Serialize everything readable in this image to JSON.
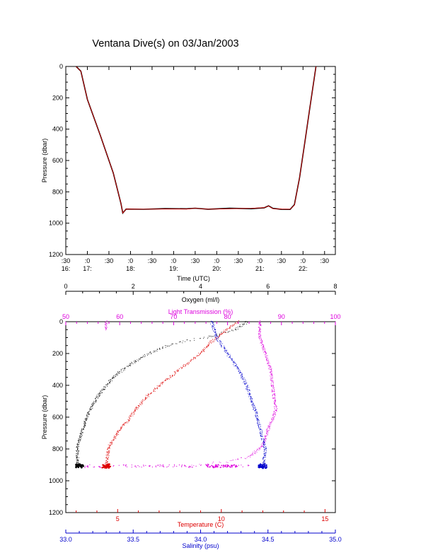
{
  "title": "Ventana Dive(s) on 03/Jan/2003",
  "colors": {
    "axis": "#000000",
    "trace_dark": "#000000",
    "trace_red": "#dd0000",
    "temperature": "#dd0000",
    "salinity": "#0000cc",
    "light_transmission": "#dd00dd",
    "oxygen": "#000000"
  },
  "chart_data": [
    {
      "type": "line",
      "ylabel": "Pressure (dbar)",
      "xlabel": "Time (UTC)",
      "ylim": [
        1200,
        0
      ],
      "y_ticks": [
        0,
        200,
        400,
        600,
        800,
        1000,
        1200
      ],
      "y_tick_labels": [
        "0",
        "200",
        "400",
        "600",
        "800",
        "1000",
        "1200"
      ],
      "xlim": [
        16.5,
        22.75
      ],
      "x_ticks": [
        16.5,
        17,
        17.5,
        18,
        18.5,
        19,
        19.5,
        20,
        20.5,
        21,
        21.5,
        22,
        22.5
      ],
      "x_tick_labels": [
        [
          ":30",
          "16:"
        ],
        [
          ":0",
          "17:"
        ],
        [
          ":30",
          ""
        ],
        [
          ":0",
          "18:"
        ],
        [
          ":30",
          ""
        ],
        [
          ":0",
          "19:"
        ],
        [
          ":30",
          ""
        ],
        [
          ":0",
          "20:"
        ],
        [
          ":30",
          ""
        ],
        [
          ":0",
          "21:"
        ],
        [
          ":30",
          ""
        ],
        [
          ":0",
          "22:"
        ],
        [
          ":30",
          ""
        ]
      ],
      "series": [
        {
          "x": [
            16.74,
            16.85,
            17.0,
            17.3,
            17.6,
            17.78,
            17.82,
            17.9,
            18.3,
            18.8,
            19.3,
            19.5,
            19.8,
            20.3,
            20.8,
            21.1,
            21.2,
            21.3,
            21.5,
            21.7,
            21.8,
            21.92,
            22.05,
            22.15,
            22.3
          ],
          "y": [
            0,
            30,
            210,
            440,
            680,
            875,
            935,
            910,
            911,
            910,
            910,
            905,
            911,
            908,
            905,
            901,
            890,
            907,
            910,
            911,
            885,
            710,
            470,
            280,
            0
          ]
        }
      ]
    },
    {
      "type": "scatter",
      "ylabel": "Pressure (dbar)",
      "ylim": [
        1200,
        0
      ],
      "y_ticks": [
        0,
        200,
        400,
        600,
        800,
        1000,
        1200
      ],
      "y_tick_labels": [
        "0",
        "200",
        "400",
        "600",
        "800",
        "1000",
        "1200"
      ],
      "axes": {
        "oxygen": {
          "label": "Oxygen (ml/l)",
          "range": [
            0,
            8
          ],
          "ticks": [
            0,
            2,
            4,
            6,
            8
          ],
          "tick_labels": [
            "0",
            "2",
            "4",
            "6",
            "8"
          ]
        },
        "light_transmission": {
          "label": "Light Transmission (%)",
          "range": [
            50,
            100
          ],
          "ticks": [
            50,
            60,
            70,
            80,
            90,
            100
          ],
          "tick_labels": [
            "50",
            "60",
            "70",
            "80",
            "90",
            "100"
          ]
        },
        "temperature": {
          "label": "Temperature (C)",
          "range": [
            2.5,
            15.5
          ],
          "ticks": [
            5,
            10,
            15
          ],
          "tick_labels": [
            "5",
            "10",
            "15"
          ]
        },
        "salinity": {
          "label": "Salinity (psu)",
          "range": [
            33.0,
            35.0
          ],
          "ticks": [
            33.0,
            33.5,
            34.0,
            34.5,
            35.0
          ],
          "tick_labels": [
            "33.0",
            "33.5",
            "34.0",
            "34.5",
            "35.0"
          ]
        }
      },
      "series": [
        {
          "axis": "oxygen",
          "x": [
            5.4,
            5.0,
            4.2,
            3.6,
            3.0,
            2.2,
            1.5,
            1.0,
            0.7,
            0.5,
            0.35,
            0.35,
            0.4
          ],
          "y": [
            0,
            50,
            100,
            120,
            150,
            230,
            330,
            450,
            560,
            680,
            780,
            880,
            910
          ]
        },
        {
          "axis": "light_transmission",
          "x": [
            57.5,
            57.5,
            86.0,
            86.0,
            88.0,
            88.5,
            89.0,
            88.5,
            87.5,
            86.5,
            84.0,
            80.0,
            72.0,
            63.0
          ],
          "y": [
            0,
            50,
            0,
            100,
            300,
            450,
            550,
            600,
            680,
            780,
            850,
            880,
            905,
            910
          ]
        },
        {
          "axis": "temperature",
          "x": [
            10.8,
            10.5,
            10.0,
            9.5,
            9.0,
            8.0,
            7.2,
            6.5,
            6.0,
            5.5,
            5.0,
            4.6,
            4.5,
            4.45
          ],
          "y": [
            0,
            30,
            80,
            130,
            200,
            300,
            380,
            460,
            530,
            620,
            700,
            780,
            850,
            910
          ]
        },
        {
          "axis": "salinity",
          "x": [
            34.08,
            34.12,
            34.2,
            34.28,
            34.34,
            34.38,
            34.42,
            34.45,
            34.48,
            34.47,
            34.46
          ],
          "y": [
            0,
            100,
            200,
            300,
            400,
            500,
            600,
            700,
            800,
            880,
            910
          ]
        }
      ]
    }
  ]
}
